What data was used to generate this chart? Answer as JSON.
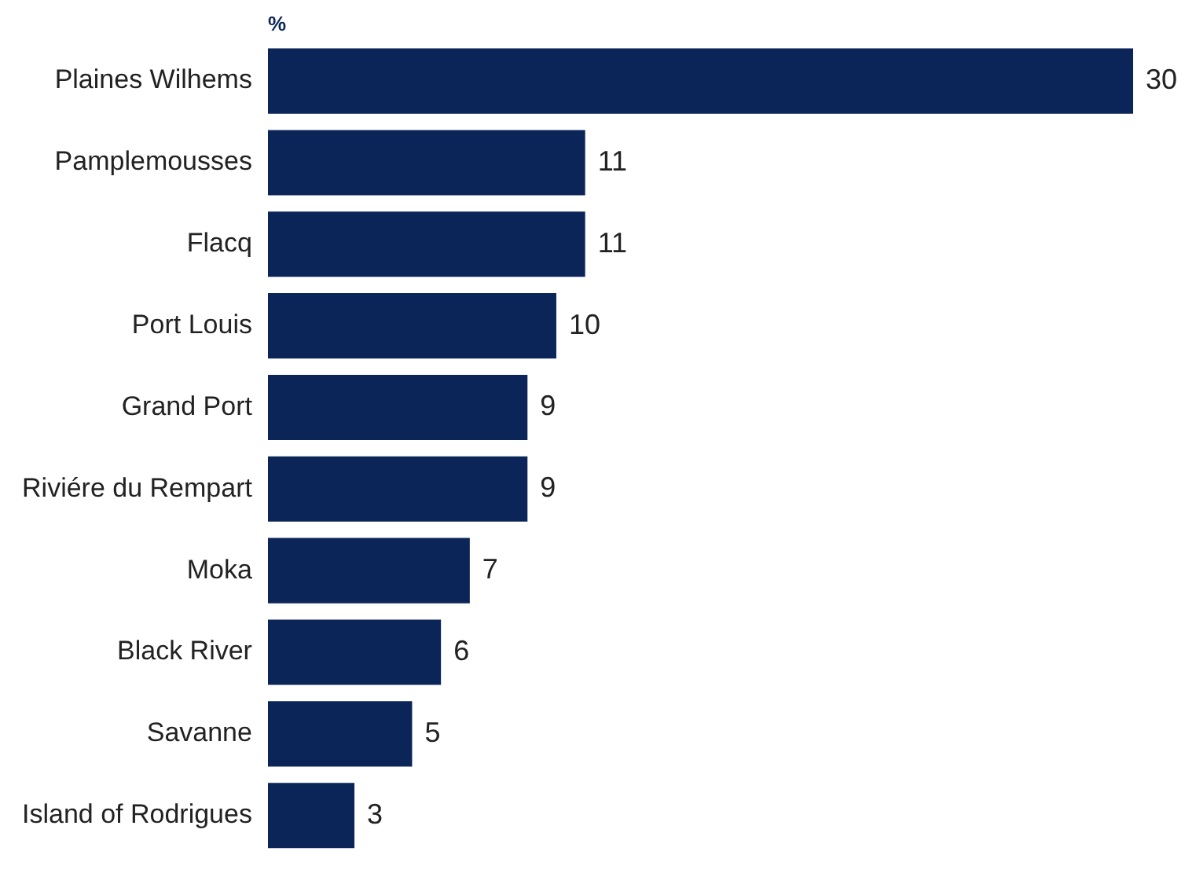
{
  "chart_data": {
    "type": "bar",
    "orientation": "horizontal",
    "xlabel": "%",
    "categories": [
      "Plaines Wilhems",
      "Pamplemousses",
      "Flacq",
      "Port Louis",
      "Grand Port",
      "Riviére du Rempart",
      "Moka",
      "Black River",
      "Savanne",
      "Island of Rodrigues"
    ],
    "values": [
      30,
      11,
      11,
      10,
      9,
      9,
      7,
      6,
      5,
      3
    ],
    "color": "#0b2559",
    "data_labels": true,
    "grid": false,
    "legend": false,
    "tick_labels": "y"
  }
}
